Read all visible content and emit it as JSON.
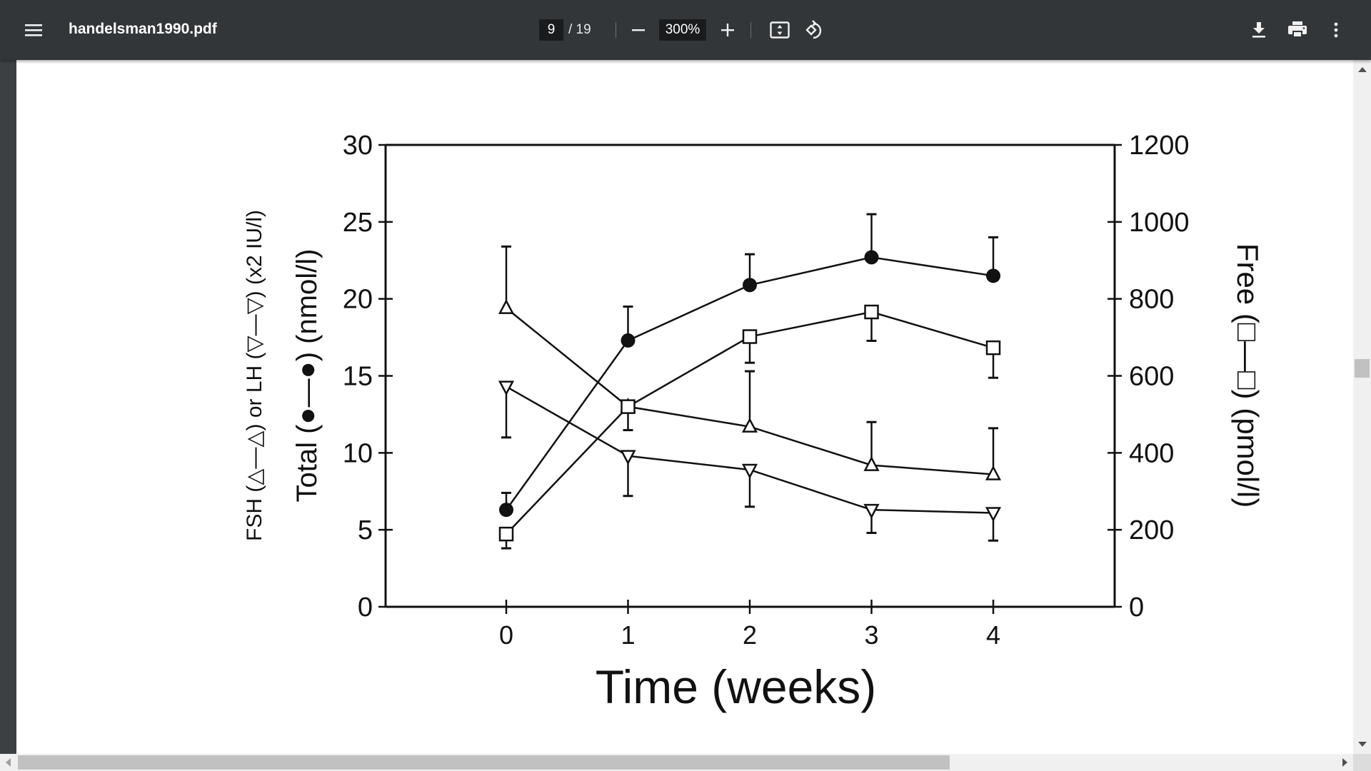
{
  "toolbar": {
    "title": "handelsman1990.pdf",
    "current_page": "9",
    "total_pages": "/ 19",
    "zoom_level": "300%",
    "icons": [
      "menu-icon",
      "zoom-out-icon",
      "zoom-in-icon",
      "fit-page-icon",
      "rotate-icon",
      "download-icon",
      "print-icon",
      "more-vert-icon"
    ]
  },
  "colors": {
    "toolbar_bg": "#323639",
    "page_bg": "#ffffff",
    "scrollbar_track": "#f0f0f0",
    "scrollbar_thumb": "#c1c1c1",
    "ink": "#111111"
  },
  "chart_data": {
    "type": "line",
    "title": "",
    "xlabel": "Time (weeks)",
    "ylabel_left_outer": "FSH (△—△) or LH (▽—▽) (x2 IU/l)",
    "ylabel_left_inner": "Total (●—●) (nmol/l)",
    "ylabel_right": "Free (□—□) (pmol/l)",
    "x": [
      0,
      1,
      2,
      3,
      4
    ],
    "xticks": [
      "0",
      "1",
      "2",
      "3",
      "4"
    ],
    "yticks_left": [
      "0",
      "5",
      "10",
      "15",
      "20",
      "25",
      "30"
    ],
    "yticks_right": [
      "0",
      "200",
      "400",
      "600",
      "800",
      "1000",
      "1200"
    ],
    "ylim_left": [
      0,
      30
    ],
    "ylim_right": [
      0,
      1200
    ],
    "xlim": [
      -1,
      5
    ],
    "grid": false,
    "legend": "in axis labels",
    "series": [
      {
        "name": "Total testosterone (●)",
        "axis": "left",
        "marker": "filled-circle",
        "values": [
          6.3,
          17.3,
          20.9,
          22.7,
          21.5
        ],
        "error_upper": [
          7.4,
          19.5,
          22.9,
          25.5,
          24.0
        ]
      },
      {
        "name": "FSH (△)",
        "axis": "left",
        "marker": "triangle-up",
        "values": [
          19.4,
          13.0,
          11.7,
          9.2,
          8.6
        ],
        "error_upper": [
          23.4,
          null,
          15.3,
          12.0,
          11.6
        ]
      },
      {
        "name": "LH (▽)",
        "axis": "left",
        "marker": "triangle-down",
        "values": [
          14.3,
          9.8,
          8.9,
          6.3,
          6.1
        ],
        "error_lower": [
          11.0,
          7.2,
          6.5,
          4.8,
          4.3
        ]
      },
      {
        "name": "Free testosterone (□)",
        "axis": "right",
        "marker": "open-square",
        "values": [
          189,
          520,
          702,
          766,
          673
        ],
        "error_lower": [
          152,
          459,
          634,
          691,
          595
        ]
      }
    ]
  }
}
